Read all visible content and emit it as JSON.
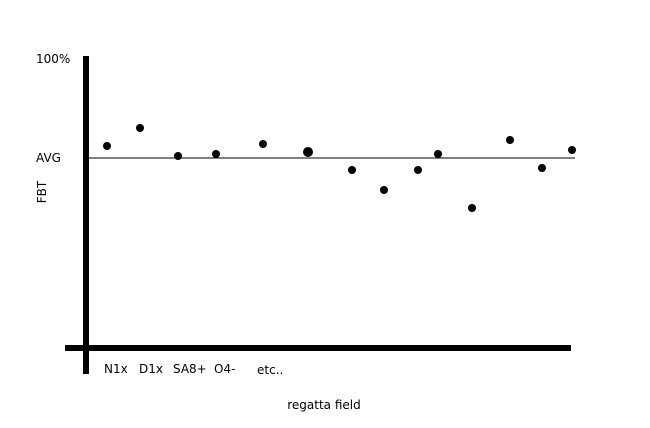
{
  "chart_data": {
    "type": "scatter",
    "y_top_label": "100%",
    "avg_label": "AVG",
    "ylabel": "FBT",
    "xlabel": "regatta field",
    "x_tick_labels": [
      "N1x",
      "D1x",
      "SA8+",
      "O4-",
      "etc.."
    ],
    "ylim_percent_of_top": [
      0,
      100
    ],
    "avg_level_percent": 50,
    "grid": false,
    "points": [
      {
        "category": "N1x",
        "y": 56
      },
      {
        "category": "D1x",
        "y": 65
      },
      {
        "category": "SA8+",
        "y": 51
      },
      {
        "category": "O4-",
        "y": 52
      },
      {
        "category": "etc..",
        "y": 57
      },
      {
        "y": 53
      },
      {
        "y": 44
      },
      {
        "y": 34
      },
      {
        "y": 44
      },
      {
        "y": 52
      },
      {
        "y": 25
      },
      {
        "y": 59
      },
      {
        "y": 45
      },
      {
        "y": 54
      }
    ]
  }
}
